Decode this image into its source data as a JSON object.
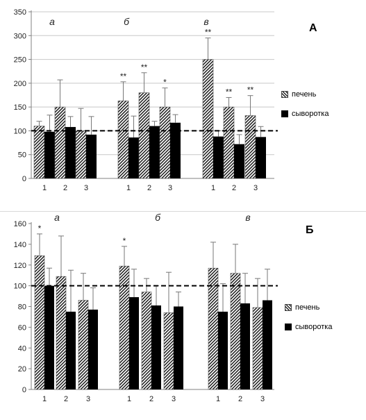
{
  "chart_data": [
    {
      "type": "bar",
      "panel_label": "А",
      "ylim": [
        0,
        350
      ],
      "yticks": [
        0,
        50,
        100,
        150,
        200,
        250,
        300,
        350
      ],
      "reference_line": 100,
      "grid": true,
      "legend_position": "right",
      "groups": [
        {
          "label": "а",
          "categories": [
            "1",
            "2",
            "3"
          ],
          "annotations": [
            "",
            "",
            ""
          ]
        },
        {
          "label": "б",
          "categories": [
            "1",
            "2",
            "3"
          ],
          "annotations": [
            "**",
            "**",
            "*"
          ]
        },
        {
          "label": "в",
          "categories": [
            "1",
            "2",
            "3"
          ],
          "annotations": [
            "**",
            "**",
            "**"
          ]
        }
      ],
      "series": [
        {
          "name": "печень",
          "style": "hatched",
          "values": [
            110,
            150,
            100,
            163,
            180,
            150,
            250,
            150,
            132
          ],
          "errors": [
            10,
            57,
            47,
            40,
            42,
            40,
            45,
            20,
            42
          ]
        },
        {
          "name": "сыворотка",
          "style": "solid",
          "values": [
            98,
            108,
            92,
            86,
            110,
            117,
            88,
            72,
            87
          ],
          "errors": [
            35,
            22,
            38,
            45,
            10,
            17,
            12,
            20,
            22
          ]
        }
      ]
    },
    {
      "type": "bar",
      "panel_label": "Б",
      "ylim": [
        0,
        160
      ],
      "yticks": [
        0,
        20,
        40,
        60,
        80,
        100,
        120,
        140,
        160
      ],
      "reference_line": 100,
      "grid": false,
      "legend_position": "right",
      "groups": [
        {
          "label": "а",
          "categories": [
            "1",
            "2",
            "3"
          ],
          "annotations": [
            "*",
            "",
            ""
          ]
        },
        {
          "label": "б",
          "categories": [
            "1",
            "2",
            "3"
          ],
          "annotations": [
            "*",
            "",
            ""
          ]
        },
        {
          "label": "в",
          "categories": [
            "1",
            "2",
            "3"
          ],
          "annotations": [
            "",
            "",
            ""
          ]
        }
      ],
      "series": [
        {
          "name": "печень",
          "style": "hatched",
          "values": [
            129,
            109,
            86,
            119,
            94,
            74,
            117,
            112,
            79
          ],
          "errors": [
            21,
            39,
            26,
            19,
            13,
            39,
            25,
            28,
            28
          ]
        },
        {
          "name": "сыворотка",
          "style": "solid",
          "values": [
            100,
            75,
            77,
            89,
            81,
            80,
            75,
            83,
            86
          ],
          "errors": [
            17,
            40,
            21,
            27,
            19,
            14,
            27,
            29,
            30
          ]
        }
      ]
    }
  ]
}
